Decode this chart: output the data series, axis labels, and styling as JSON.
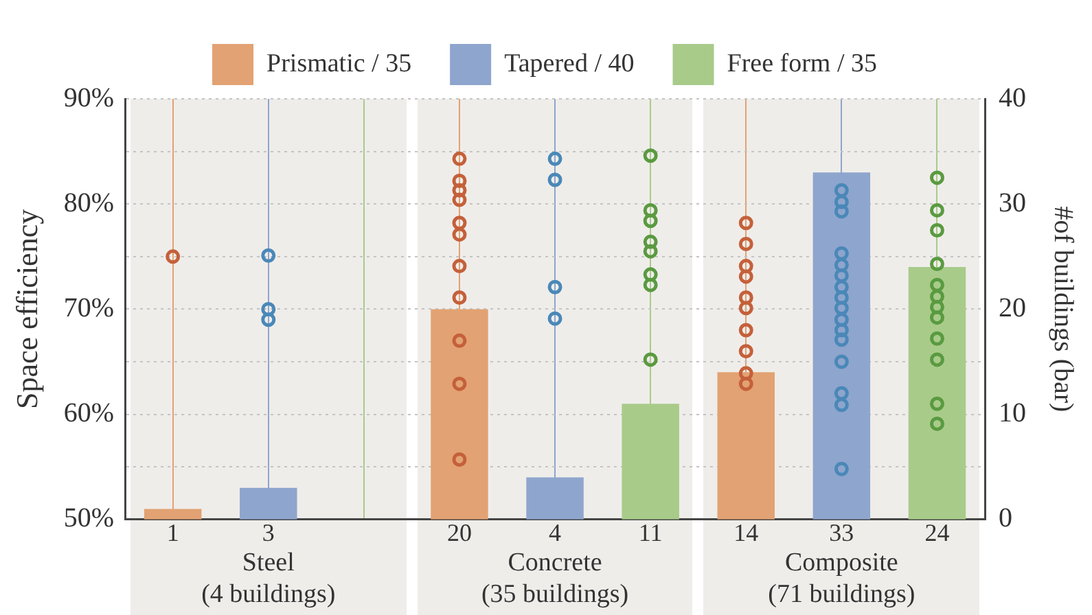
{
  "chart_data": {
    "type": "bar",
    "ylabel": "Space efficiency",
    "y2label": "#of buildings (bar)",
    "categories": [
      "1",
      "3",
      null,
      "20",
      "4",
      "11",
      "14",
      "33",
      "24"
    ],
    "series": [
      {
        "name": "Prismatic / 35",
        "axis": "y2",
        "color": "#e2a273",
        "values": [
          1,
          null,
          null,
          20,
          null,
          null,
          14,
          null,
          null
        ]
      },
      {
        "name": "Tapered / 40",
        "axis": "y2",
        "color": "#8ea5cd",
        "values": [
          null,
          3,
          null,
          null,
          4,
          null,
          null,
          33,
          null
        ]
      },
      {
        "name": "Free form / 35",
        "axis": "y2",
        "color": "#a8cb8a",
        "values": [
          null,
          null,
          0,
          null,
          null,
          11,
          null,
          null,
          24
        ]
      },
      {
        "type": "scatter",
        "color": "#c4603a",
        "x": [
          "1",
          "20",
          "20",
          "20",
          "20",
          "20",
          "20",
          "20",
          "20",
          "20",
          "20",
          "20",
          "14",
          "14",
          "14",
          "14",
          "14",
          "14",
          "14",
          "14",
          "14",
          "14"
        ],
        "values": [
          75,
          84.3,
          82.2,
          81.3,
          80.4,
          78.2,
          77.1,
          74.1,
          71.1,
          67,
          62.9,
          55.7,
          78.2,
          76.2,
          74.1,
          73.1,
          71.1,
          70.1,
          68,
          66,
          63.9,
          62.9
        ]
      },
      {
        "type": "scatter",
        "color": "#4a88b8",
        "x": [
          "3",
          "3",
          "3",
          "4",
          "4",
          "4",
          "4",
          "33",
          "33",
          "33",
          "33",
          "33",
          "33",
          "33",
          "33",
          "33",
          "33",
          "33",
          "33",
          "33",
          "33",
          "33",
          "33"
        ],
        "values": [
          75.1,
          70,
          69,
          84.3,
          82.3,
          72.1,
          69.1,
          81.3,
          80.2,
          79.3,
          75.3,
          74.2,
          73.2,
          72.1,
          71.1,
          70.1,
          69,
          68,
          67.1,
          65,
          62,
          60.9,
          54.8
        ]
      },
      {
        "type": "scatter",
        "color": "#5a9a40",
        "x": [
          "11",
          "11",
          "11",
          "11",
          "11",
          "11",
          "11",
          "11",
          "24",
          "24",
          "24",
          "24",
          "24",
          "24",
          "24",
          "24",
          "24",
          "24",
          "24",
          "24"
        ],
        "values": [
          84.6,
          79.4,
          78.4,
          76.4,
          75.5,
          73.3,
          72.3,
          65.2,
          82.5,
          79.4,
          77.5,
          74.3,
          72.3,
          71.2,
          70.2,
          69.2,
          67.2,
          65.2,
          61,
          59.1
        ]
      }
    ],
    "ylim": [
      50,
      90
    ],
    "yticks": [
      {
        "value": 50,
        "label": "50%"
      },
      {
        "value": 55,
        "label": null
      },
      {
        "value": 60,
        "label": "60%"
      },
      {
        "value": 65,
        "label": null
      },
      {
        "value": 70,
        "label": "70%"
      },
      {
        "value": 75,
        "label": null
      },
      {
        "value": 80,
        "label": "80%"
      },
      {
        "value": 85,
        "label": null
      },
      {
        "value": 90,
        "label": "90%"
      }
    ],
    "y2lim": [
      0,
      40
    ],
    "y2ticks": [
      0,
      10,
      20,
      30,
      40
    ],
    "grid": true,
    "legend": "top",
    "marker": "circle",
    "annotations": [
      "Steel\n(4 buildings)",
      "Concrete\n(35 buildings)",
      "Composite\n(71 buildings)"
    ]
  }
}
